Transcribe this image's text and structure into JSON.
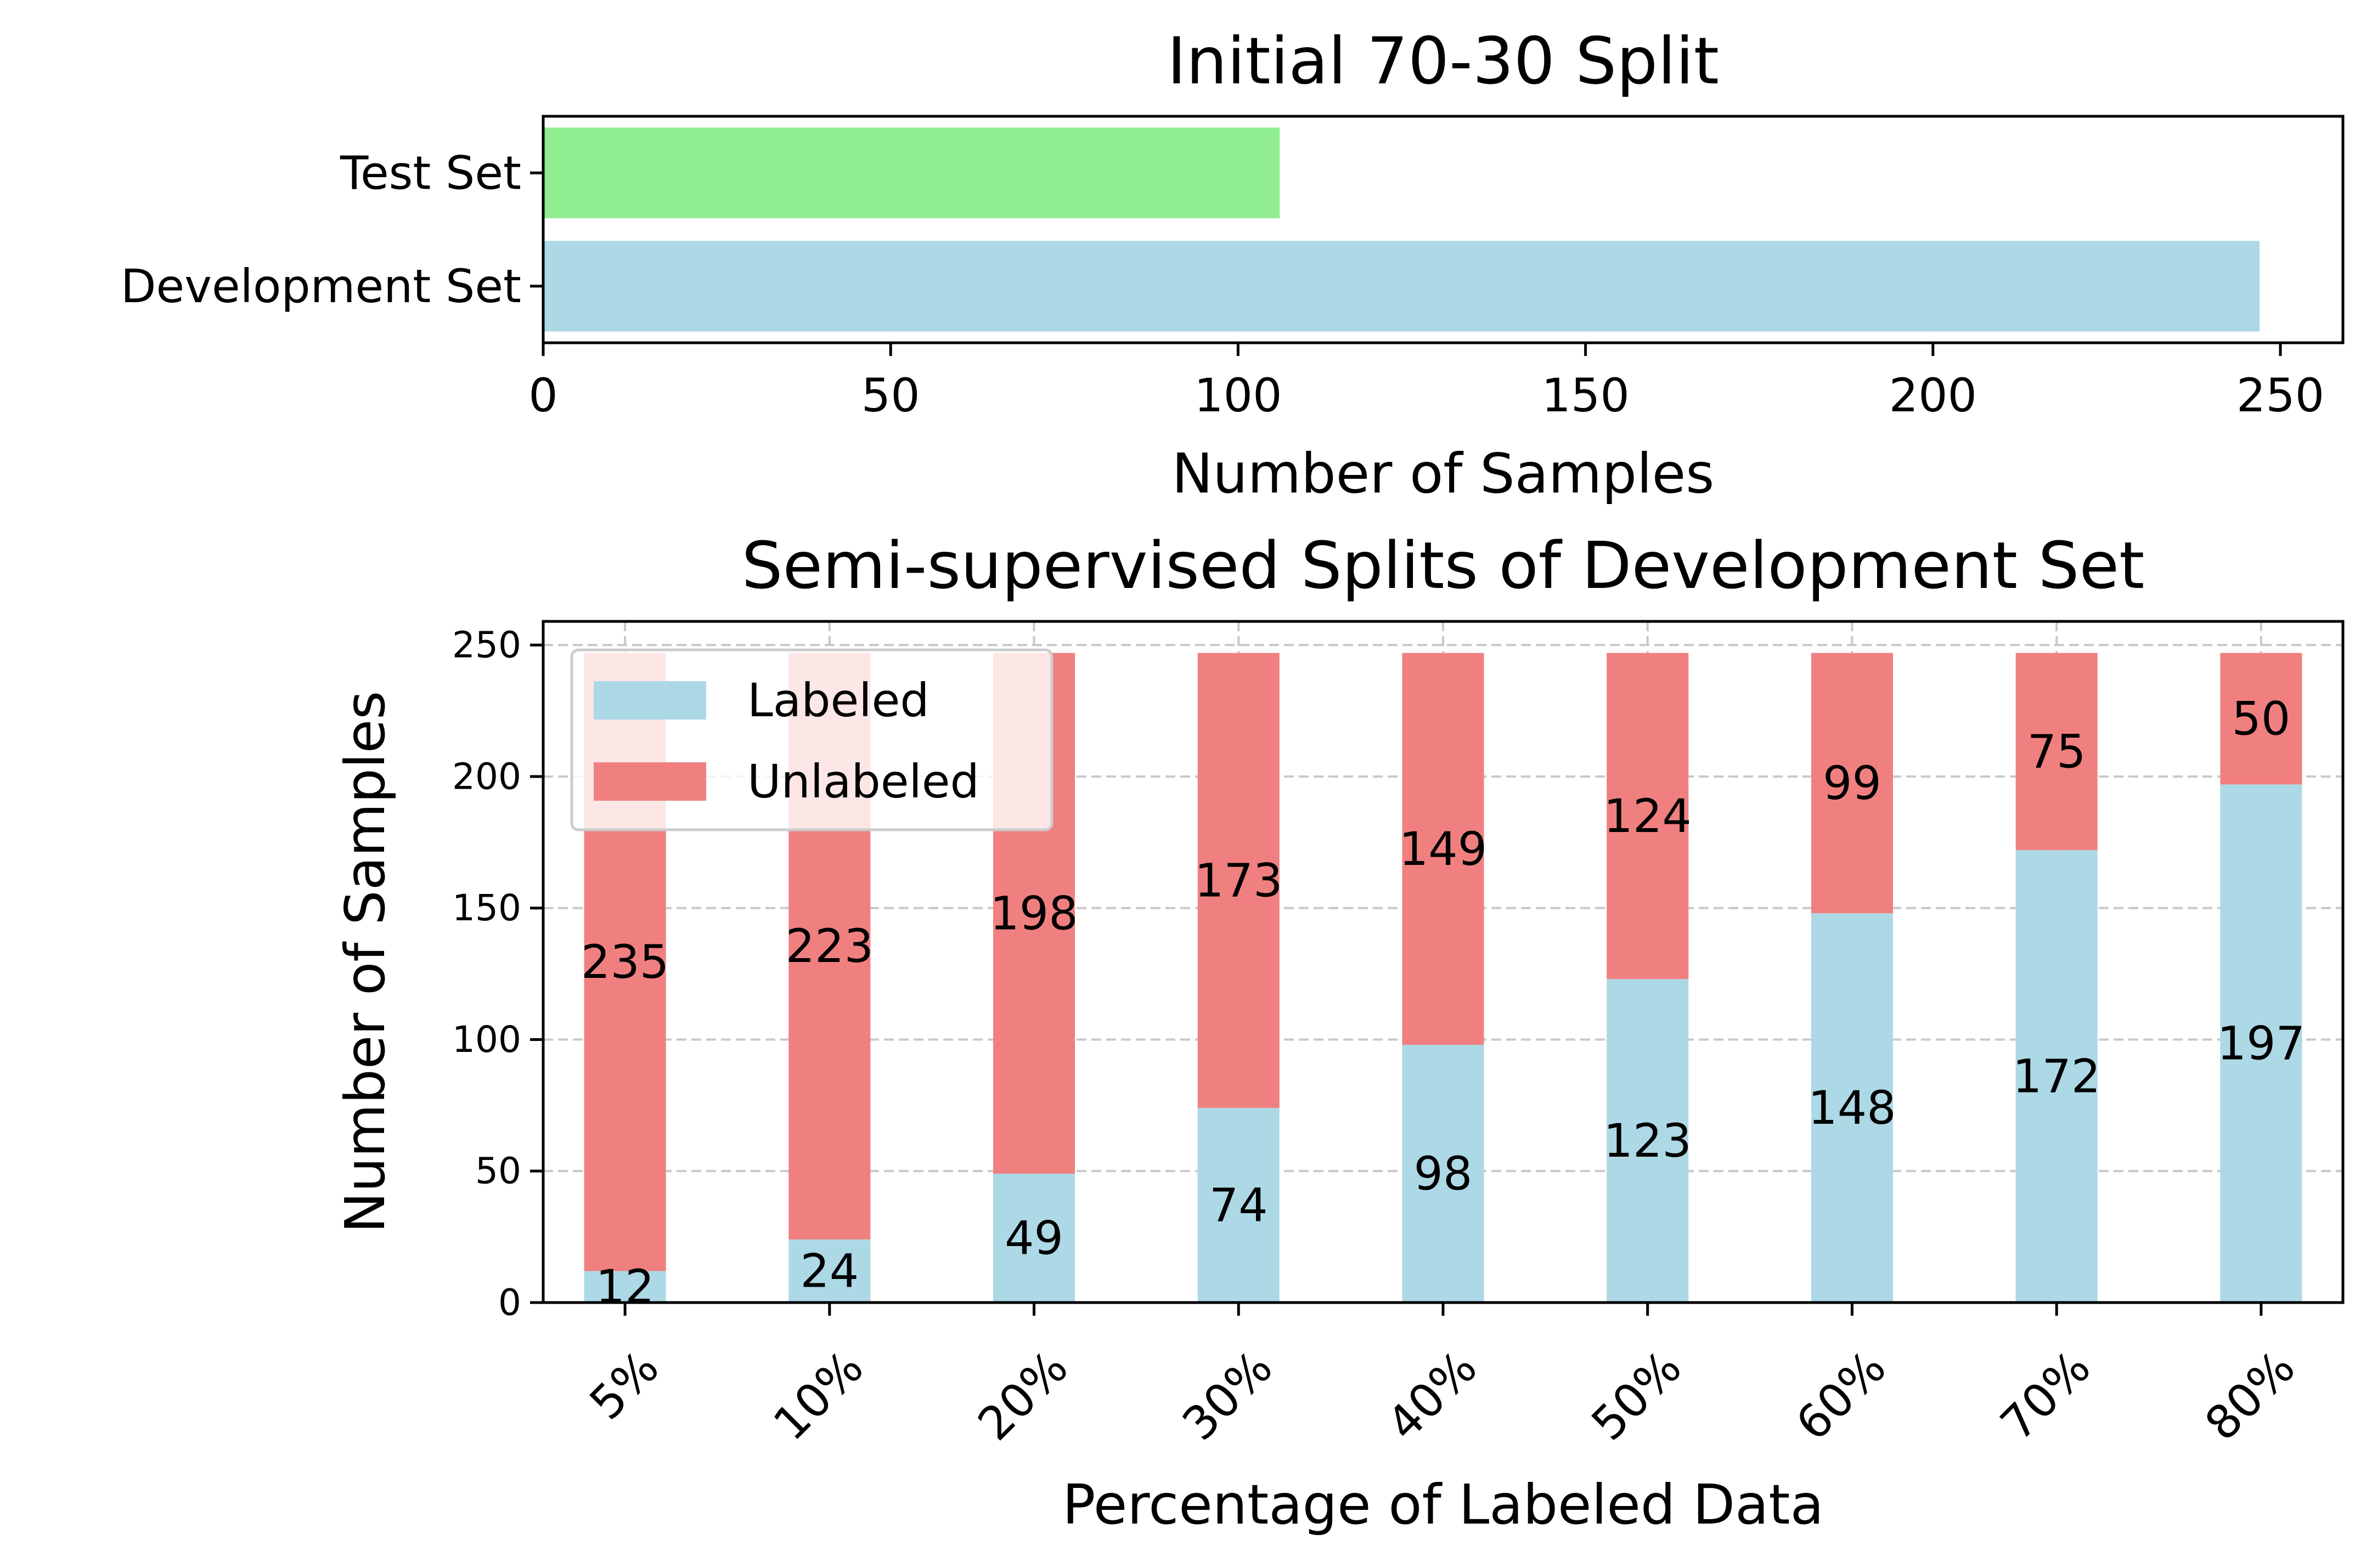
{
  "chart_data": [
    {
      "type": "bar",
      "orientation": "horizontal",
      "title": "Initial 70-30 Split",
      "xlabel": "Number of Samples",
      "ylabel": "",
      "categories": [
        "Development Set",
        "Test Set"
      ],
      "values": [
        247,
        106
      ],
      "colors": [
        "#add8e6",
        "#90ee90"
      ],
      "xlim": [
        0,
        259
      ],
      "xticks": [
        0,
        50,
        100,
        150,
        200,
        250
      ],
      "grid": false
    },
    {
      "type": "bar",
      "stacked": true,
      "title": "Semi-supervised Splits of Development Set",
      "xlabel": "Percentage of Labeled Data",
      "ylabel": "Number of Samples",
      "categories": [
        "5%",
        "10%",
        "20%",
        "30%",
        "40%",
        "50%",
        "60%",
        "70%",
        "80%"
      ],
      "series": [
        {
          "name": "Labeled",
          "color": "#add8e6",
          "values": [
            12,
            24,
            49,
            74,
            98,
            123,
            148,
            172,
            197
          ]
        },
        {
          "name": "Unlabeled",
          "color": "#f08080",
          "values": [
            235,
            223,
            198,
            173,
            149,
            124,
            99,
            75,
            50
          ]
        }
      ],
      "ylim": [
        0,
        259
      ],
      "yticks": [
        0,
        50,
        100,
        150,
        200,
        250
      ],
      "grid": true,
      "legend_position": "upper-left"
    }
  ]
}
